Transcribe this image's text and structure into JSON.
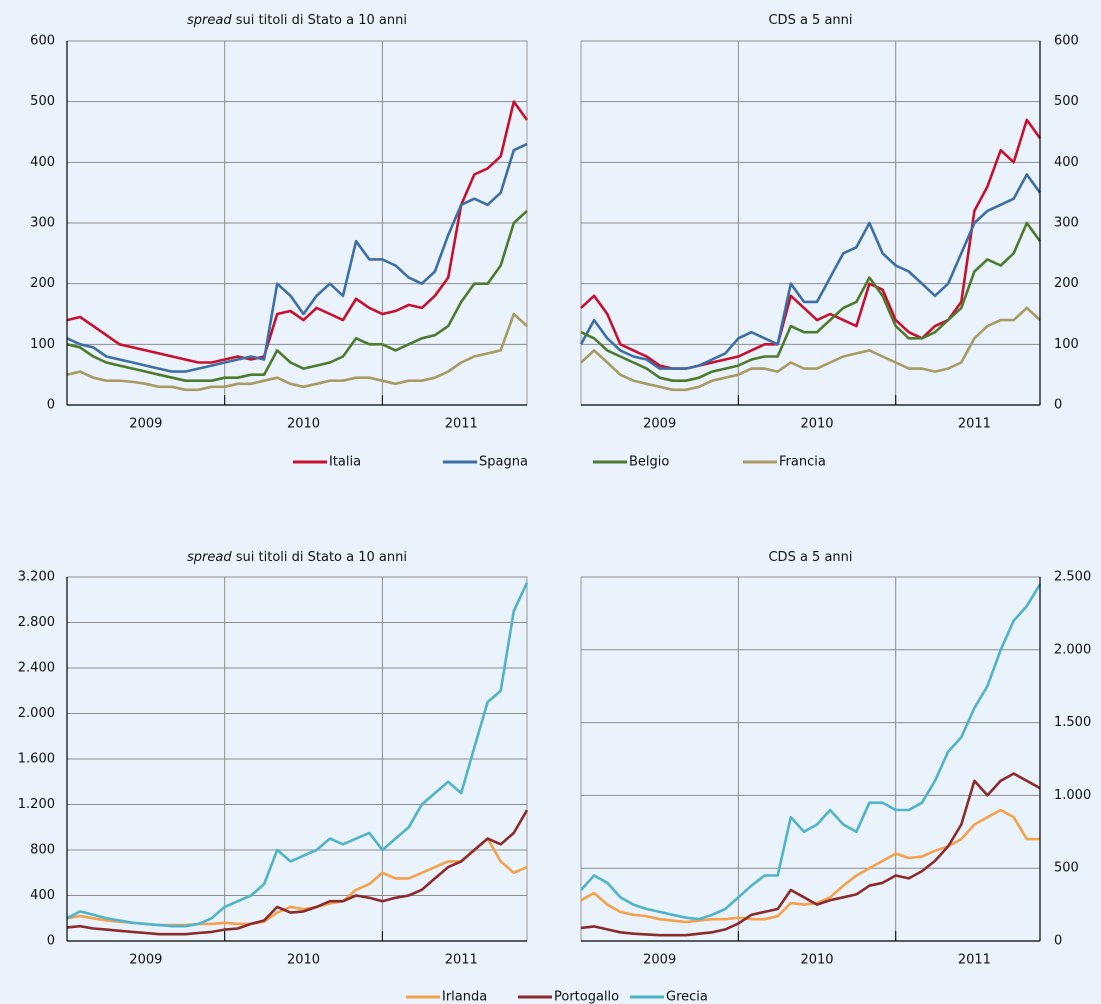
{
  "chart_data": [
    {
      "type": "line",
      "title_em": "spread",
      "title": "sui titoli di Stato a 10 anni",
      "y_axis_side": "left",
      "legend": "below",
      "xlim": [
        2009,
        2011.917
      ],
      "xticks": [
        {
          "value": 2009.5,
          "label": "2009"
        },
        {
          "value": 2010.5,
          "label": "2010"
        },
        {
          "value": 2011.5,
          "label": "2011"
        }
      ],
      "xgrid": [
        2010,
        2011
      ],
      "ylim": [
        0,
        600
      ],
      "yticks": [
        0,
        100,
        200,
        300,
        400,
        500,
        600
      ],
      "grid": true,
      "x": [
        2009,
        2009.083,
        2009.167,
        2009.25,
        2009.333,
        2009.417,
        2009.5,
        2009.583,
        2009.667,
        2009.75,
        2009.833,
        2009.917,
        2010,
        2010.083,
        2010.167,
        2010.25,
        2010.333,
        2010.417,
        2010.5,
        2010.583,
        2010.667,
        2010.75,
        2010.833,
        2010.917,
        2011,
        2011.083,
        2011.167,
        2011.25,
        2011.333,
        2011.417,
        2011.5,
        2011.583,
        2011.667,
        2011.75,
        2011.833,
        2011.917
      ],
      "series": [
        {
          "name": "Italia",
          "color": "#c8102e",
          "values": [
            140,
            145,
            130,
            115,
            100,
            95,
            90,
            85,
            80,
            75,
            70,
            70,
            75,
            80,
            75,
            80,
            150,
            155,
            140,
            160,
            150,
            140,
            175,
            160,
            150,
            155,
            165,
            160,
            180,
            210,
            330,
            380,
            390,
            410,
            500,
            470
          ]
        },
        {
          "name": "Spagna",
          "color": "#3e6ea6",
          "values": [
            110,
            100,
            95,
            80,
            75,
            70,
            65,
            60,
            55,
            55,
            60,
            65,
            70,
            75,
            80,
            75,
            200,
            180,
            150,
            180,
            200,
            180,
            270,
            240,
            240,
            230,
            210,
            200,
            220,
            280,
            330,
            340,
            330,
            350,
            420,
            430
          ]
        },
        {
          "name": "Belgio",
          "color": "#4e7a2e",
          "values": [
            100,
            95,
            80,
            70,
            65,
            60,
            55,
            50,
            45,
            40,
            40,
            40,
            45,
            45,
            50,
            50,
            90,
            70,
            60,
            65,
            70,
            80,
            110,
            100,
            100,
            90,
            100,
            110,
            115,
            130,
            170,
            200,
            200,
            230,
            300,
            320
          ]
        },
        {
          "name": "Francia",
          "color": "#a89a63",
          "values": [
            50,
            55,
            45,
            40,
            40,
            38,
            35,
            30,
            30,
            25,
            25,
            30,
            30,
            35,
            35,
            40,
            45,
            35,
            30,
            35,
            40,
            40,
            45,
            45,
            40,
            35,
            40,
            40,
            45,
            55,
            70,
            80,
            85,
            90,
            150,
            130
          ]
        }
      ]
    },
    {
      "type": "line",
      "title": "CDS a 5 anni",
      "y_axis_side": "right",
      "xlim": [
        2009,
        2011.917
      ],
      "xticks": [
        {
          "value": 2009.5,
          "label": "2009"
        },
        {
          "value": 2010.5,
          "label": "2010"
        },
        {
          "value": 2011.5,
          "label": "2011"
        }
      ],
      "xgrid": [
        2010,
        2011
      ],
      "ylim": [
        0,
        600
      ],
      "yticks": [
        0,
        100,
        200,
        300,
        400,
        500,
        600
      ],
      "grid": true,
      "x": [
        2009,
        2009.083,
        2009.167,
        2009.25,
        2009.333,
        2009.417,
        2009.5,
        2009.583,
        2009.667,
        2009.75,
        2009.833,
        2009.917,
        2010,
        2010.083,
        2010.167,
        2010.25,
        2010.333,
        2010.417,
        2010.5,
        2010.583,
        2010.667,
        2010.75,
        2010.833,
        2010.917,
        2011,
        2011.083,
        2011.167,
        2011.25,
        2011.333,
        2011.417,
        2011.5,
        2011.583,
        2011.667,
        2011.75,
        2011.833,
        2011.917
      ],
      "series": [
        {
          "name": "Italia",
          "color": "#c8102e",
          "values": [
            160,
            180,
            150,
            100,
            90,
            80,
            65,
            60,
            60,
            65,
            70,
            75,
            80,
            90,
            100,
            100,
            180,
            160,
            140,
            150,
            140,
            130,
            200,
            190,
            140,
            120,
            110,
            130,
            140,
            170,
            320,
            360,
            420,
            400,
            470,
            440
          ]
        },
        {
          "name": "Spagna",
          "color": "#3e6ea6",
          "values": [
            100,
            140,
            110,
            90,
            80,
            75,
            60,
            60,
            60,
            65,
            75,
            85,
            110,
            120,
            110,
            100,
            200,
            170,
            170,
            210,
            250,
            260,
            300,
            250,
            230,
            220,
            200,
            180,
            200,
            250,
            300,
            320,
            330,
            340,
            380,
            350
          ]
        },
        {
          "name": "Belgio",
          "color": "#4e7a2e",
          "values": [
            120,
            110,
            90,
            80,
            70,
            60,
            45,
            40,
            40,
            45,
            55,
            60,
            65,
            75,
            80,
            80,
            130,
            120,
            120,
            140,
            160,
            170,
            210,
            180,
            130,
            110,
            110,
            120,
            140,
            160,
            220,
            240,
            230,
            250,
            300,
            270
          ]
        },
        {
          "name": "Francia",
          "color": "#a89a63",
          "values": [
            70,
            90,
            70,
            50,
            40,
            35,
            30,
            25,
            25,
            30,
            40,
            45,
            50,
            60,
            60,
            55,
            70,
            60,
            60,
            70,
            80,
            85,
            90,
            80,
            70,
            60,
            60,
            55,
            60,
            70,
            110,
            130,
            140,
            140,
            160,
            140
          ]
        }
      ]
    },
    {
      "type": "line",
      "title_em": "spread",
      "title": "sui titoli di Stato a 10 anni",
      "y_axis_side": "left",
      "legend": "below",
      "xlim": [
        2009,
        2011.917
      ],
      "xticks": [
        {
          "value": 2009.5,
          "label": "2009"
        },
        {
          "value": 2010.5,
          "label": "2010"
        },
        {
          "value": 2011.5,
          "label": "2011"
        }
      ],
      "xgrid": [
        2010,
        2011
      ],
      "ylim": [
        0,
        3200
      ],
      "yticks": [
        0,
        400,
        800,
        {
          "value": 1200,
          "label": "1.200"
        },
        {
          "value": 1600,
          "label": "1.600"
        },
        {
          "value": 2000,
          "label": "2.000"
        },
        {
          "value": 2400,
          "label": "2.400"
        },
        {
          "value": 2800,
          "label": "2.800"
        },
        {
          "value": 3200,
          "label": "3.200"
        }
      ],
      "grid": true,
      "x": [
        2009,
        2009.083,
        2009.167,
        2009.25,
        2009.333,
        2009.417,
        2009.5,
        2009.583,
        2009.667,
        2009.75,
        2009.833,
        2009.917,
        2010,
        2010.083,
        2010.167,
        2010.25,
        2010.333,
        2010.417,
        2010.5,
        2010.583,
        2010.667,
        2010.75,
        2010.833,
        2010.917,
        2011,
        2011.083,
        2011.167,
        2011.25,
        2011.333,
        2011.417,
        2011.5,
        2011.583,
        2011.667,
        2011.75,
        2011.833,
        2011.917
      ],
      "series": [
        {
          "name": "Irlanda",
          "color": "#f5a04a",
          "values": [
            200,
            220,
            200,
            180,
            170,
            160,
            150,
            140,
            140,
            140,
            150,
            150,
            160,
            150,
            150,
            170,
            250,
            300,
            280,
            300,
            330,
            350,
            450,
            500,
            600,
            550,
            550,
            600,
            650,
            700,
            700,
            800,
            900,
            700,
            600,
            650
          ]
        },
        {
          "name": "Portogallo",
          "color": "#8b2b2b",
          "values": [
            120,
            130,
            110,
            100,
            90,
            80,
            70,
            60,
            60,
            60,
            70,
            80,
            100,
            110,
            150,
            180,
            300,
            250,
            260,
            300,
            350,
            350,
            400,
            380,
            350,
            380,
            400,
            450,
            550,
            650,
            700,
            800,
            900,
            850,
            950,
            1150
          ]
        },
        {
          "name": "Grecia",
          "color": "#4fb3c9",
          "values": [
            200,
            260,
            230,
            200,
            180,
            160,
            150,
            140,
            130,
            130,
            150,
            200,
            300,
            350,
            400,
            500,
            800,
            700,
            750,
            800,
            900,
            850,
            900,
            950,
            800,
            900,
            1000,
            1200,
            1300,
            1400,
            1300,
            1700,
            2100,
            2200,
            2900,
            3150
          ]
        }
      ]
    },
    {
      "type": "line",
      "title": "CDS a 5 anni",
      "y_axis_side": "right",
      "xlim": [
        2009,
        2011.917
      ],
      "xticks": [
        {
          "value": 2009.5,
          "label": "2009"
        },
        {
          "value": 2010.5,
          "label": "2010"
        },
        {
          "value": 2011.5,
          "label": "2011"
        }
      ],
      "xgrid": [
        2010,
        2011
      ],
      "ylim": [
        0,
        2500
      ],
      "yticks": [
        0,
        500,
        {
          "value": 1000,
          "label": "1.000"
        },
        {
          "value": 1500,
          "label": "1.500"
        },
        {
          "value": 2000,
          "label": "2.000"
        },
        {
          "value": 2500,
          "label": "2.500"
        }
      ],
      "grid": true,
      "x": [
        2009,
        2009.083,
        2009.167,
        2009.25,
        2009.333,
        2009.417,
        2009.5,
        2009.583,
        2009.667,
        2009.75,
        2009.833,
        2009.917,
        2010,
        2010.083,
        2010.167,
        2010.25,
        2010.333,
        2010.417,
        2010.5,
        2010.583,
        2010.667,
        2010.75,
        2010.833,
        2010.917,
        2011,
        2011.083,
        2011.167,
        2011.25,
        2011.333,
        2011.417,
        2011.5,
        2011.583,
        2011.667,
        2011.75,
        2011.833,
        2011.917
      ],
      "series": [
        {
          "name": "Irlanda",
          "color": "#f5a04a",
          "values": [
            280,
            330,
            250,
            200,
            180,
            170,
            150,
            140,
            130,
            140,
            150,
            150,
            160,
            150,
            150,
            170,
            260,
            250,
            260,
            300,
            380,
            450,
            500,
            550,
            600,
            570,
            580,
            620,
            650,
            700,
            800,
            850,
            900,
            850,
            700,
            700
          ]
        },
        {
          "name": "Portogallo",
          "color": "#8b2b2b",
          "values": [
            90,
            100,
            80,
            60,
            50,
            45,
            40,
            40,
            40,
            50,
            60,
            80,
            120,
            180,
            200,
            220,
            350,
            300,
            250,
            280,
            300,
            320,
            380,
            400,
            450,
            430,
            480,
            550,
            650,
            800,
            1100,
            1000,
            1100,
            1150,
            1100,
            1050
          ]
        },
        {
          "name": "Grecia",
          "color": "#4fb3c9",
          "values": [
            350,
            450,
            400,
            300,
            250,
            220,
            200,
            180,
            160,
            150,
            180,
            220,
            300,
            380,
            450,
            450,
            850,
            750,
            800,
            900,
            800,
            750,
            950,
            950,
            900,
            900,
            950,
            1100,
            1300,
            1400,
            1600,
            1750,
            2000,
            2200,
            2300,
            2450
          ]
        }
      ]
    }
  ]
}
